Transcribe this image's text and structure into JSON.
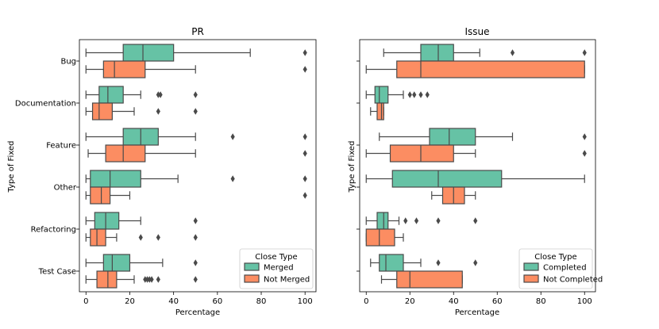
{
  "chart_data": {
    "type": "boxplot",
    "ylabel": "Type of Fixed",
    "xlabel": "Percentage",
    "xlim": [
      -3,
      105
    ],
    "xticks": [
      0,
      20,
      40,
      60,
      80,
      100
    ],
    "categories": [
      "Bug",
      "Documentation",
      "Feature",
      "Other",
      "Refactoring",
      "Test Case"
    ],
    "panels": [
      {
        "title": "PR",
        "legend_title": "Close Type",
        "series": [
          {
            "name": "Merged",
            "color": "#66c2a5",
            "boxes": [
              {
                "whislo": 0,
                "q1": 17,
                "med": 26,
                "q3": 40,
                "whishi": 75,
                "fliers": [
                  100
                ]
              },
              {
                "whislo": 0,
                "q1": 6,
                "med": 10,
                "q3": 17,
                "whishi": 25,
                "fliers": [
                  33,
                  34,
                  50
                ]
              },
              {
                "whislo": 0,
                "q1": 17,
                "med": 25,
                "q3": 33,
                "whishi": 50,
                "fliers": [
                  67,
                  100
                ]
              },
              {
                "whislo": 0,
                "q1": 2,
                "med": 11,
                "q3": 25,
                "whishi": 42,
                "fliers": [
                  67,
                  100
                ]
              },
              {
                "whislo": 0,
                "q1": 4,
                "med": 9,
                "q3": 15,
                "whishi": 25,
                "fliers": [
                  50
                ]
              },
              {
                "whislo": 0,
                "q1": 8,
                "med": 12,
                "q3": 20,
                "whishi": 35,
                "fliers": [
                  50
                ]
              }
            ]
          },
          {
            "name": "Not Merged",
            "color": "#fc8d62",
            "boxes": [
              {
                "whislo": 0,
                "q1": 8,
                "med": 13,
                "q3": 27,
                "whishi": 50,
                "fliers": [
                  100
                ]
              },
              {
                "whislo": 0,
                "q1": 3,
                "med": 6,
                "q3": 12,
                "whishi": 22,
                "fliers": [
                  33,
                  50
                ]
              },
              {
                "whislo": 1,
                "q1": 9,
                "med": 17,
                "q3": 27,
                "whishi": 50,
                "fliers": [
                  100
                ]
              },
              {
                "whislo": 0,
                "q1": 2,
                "med": 7,
                "q3": 11,
                "whishi": 20,
                "fliers": [
                  100
                ]
              },
              {
                "whislo": 0,
                "q1": 2,
                "med": 5,
                "q3": 9,
                "whishi": 14,
                "fliers": [
                  25,
                  33,
                  50
                ]
              },
              {
                "whislo": 0,
                "q1": 5,
                "med": 10,
                "q3": 14,
                "whishi": 22,
                "fliers": [
                  27,
                  28,
                  29,
                  30,
                  33,
                  50
                ]
              }
            ]
          }
        ]
      },
      {
        "title": "Issue",
        "legend_title": "Close Type",
        "series": [
          {
            "name": "Completed",
            "color": "#66c2a5",
            "boxes": [
              {
                "whislo": 8,
                "q1": 25,
                "med": 33,
                "q3": 40,
                "whishi": 52,
                "fliers": [
                  67,
                  100
                ]
              },
              {
                "whislo": 0,
                "q1": 4,
                "med": 6,
                "q3": 10,
                "whishi": 17,
                "fliers": [
                  20,
                  22,
                  25,
                  28
                ]
              },
              {
                "whislo": 6,
                "q1": 29,
                "med": 38,
                "q3": 50,
                "whishi": 67,
                "fliers": [
                  100
                ]
              },
              {
                "whislo": 0,
                "q1": 12,
                "med": 33,
                "q3": 62,
                "whishi": 100,
                "fliers": []
              },
              {
                "whislo": 0,
                "q1": 5,
                "med": 8,
                "q3": 10,
                "whishi": 15,
                "fliers": [
                  18,
                  23,
                  33,
                  50
                ]
              },
              {
                "whislo": 2,
                "q1": 6,
                "med": 9,
                "q3": 17,
                "whishi": 25,
                "fliers": [
                  33,
                  50
                ]
              }
            ]
          },
          {
            "name": "Not Completed",
            "color": "#fc8d62",
            "boxes": [
              {
                "whislo": 0,
                "q1": 14,
                "med": 25,
                "q3": 100,
                "whishi": 100,
                "fliers": []
              },
              {
                "whislo": 2,
                "q1": 5,
                "med": 7,
                "q3": 8,
                "whishi": 8,
                "fliers": []
              },
              {
                "whislo": 0,
                "q1": 11,
                "med": 25,
                "q3": 40,
                "whishi": 50,
                "fliers": [
                  100
                ]
              },
              {
                "whislo": 30,
                "q1": 35,
                "med": 40,
                "q3": 45,
                "whishi": 50,
                "fliers": []
              },
              {
                "whislo": 0,
                "q1": 0,
                "med": 6,
                "q3": 13,
                "whishi": 17,
                "fliers": []
              },
              {
                "whislo": 7,
                "q1": 14,
                "med": 20,
                "q3": 44,
                "whishi": 44,
                "fliers": []
              }
            ]
          }
        ]
      }
    ]
  }
}
